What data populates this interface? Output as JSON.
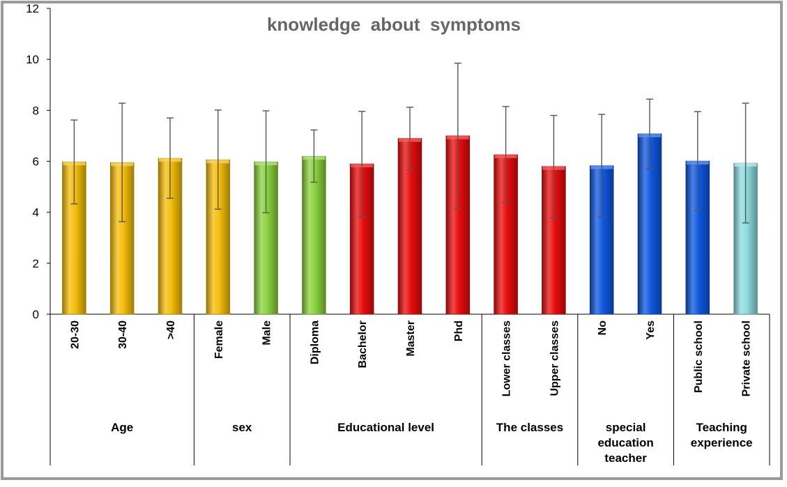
{
  "chart_data": {
    "type": "bar",
    "title": "knowledge  about  symptoms",
    "xlabel": "",
    "ylabel": "",
    "ylim": [
      0,
      12
    ],
    "yticks": [
      "0",
      "2",
      "4",
      "6",
      "8",
      "10",
      "12"
    ],
    "grid": false,
    "legend": "none",
    "categories": [
      "20-30",
      "30-40",
      ">40",
      "Female",
      "Male",
      "Diploma",
      "Bachelor",
      "Master",
      "Phd",
      "Lower classes",
      "Upper classes",
      "No",
      "Yes",
      "Public school",
      "Private school"
    ],
    "values": [
      5.98,
      5.95,
      6.12,
      6.06,
      5.98,
      6.2,
      5.9,
      6.9,
      7.0,
      6.26,
      5.8,
      5.83,
      7.08,
      6.01,
      5.93
    ],
    "error_low": [
      4.33,
      3.63,
      4.55,
      4.12,
      3.98,
      5.18,
      3.83,
      5.65,
      4.15,
      4.38,
      3.78,
      3.83,
      5.72,
      4.08,
      3.58
    ],
    "error_high": [
      7.62,
      8.28,
      7.7,
      8.01,
      7.98,
      7.23,
      7.96,
      8.12,
      9.85,
      8.15,
      7.8,
      7.84,
      8.44,
      7.95,
      8.28
    ],
    "colors": [
      "#F5BE0B",
      "#F5BE0B",
      "#F5BE0B",
      "#F5BE0B",
      "#8BD33F",
      "#8BD33F",
      "#E80D0D",
      "#E80D0D",
      "#E80D0D",
      "#E80D0D",
      "#E80D0D",
      "#0F57E0",
      "#0F57E0",
      "#0F57E0",
      "#8EDCE0"
    ],
    "groups": [
      {
        "lines": [
          "Age"
        ],
        "start": 0,
        "count": 3
      },
      {
        "lines": [
          "sex"
        ],
        "start": 3,
        "count": 2
      },
      {
        "lines": [
          "Educational level"
        ],
        "start": 5,
        "count": 4
      },
      {
        "lines": [
          "The classes"
        ],
        "start": 9,
        "count": 2
      },
      {
        "lines": [
          "special",
          "education",
          "teacher"
        ],
        "start": 11,
        "count": 2
      },
      {
        "lines": [
          "Teaching",
          "experience"
        ],
        "start": 13,
        "count": 2
      }
    ]
  }
}
